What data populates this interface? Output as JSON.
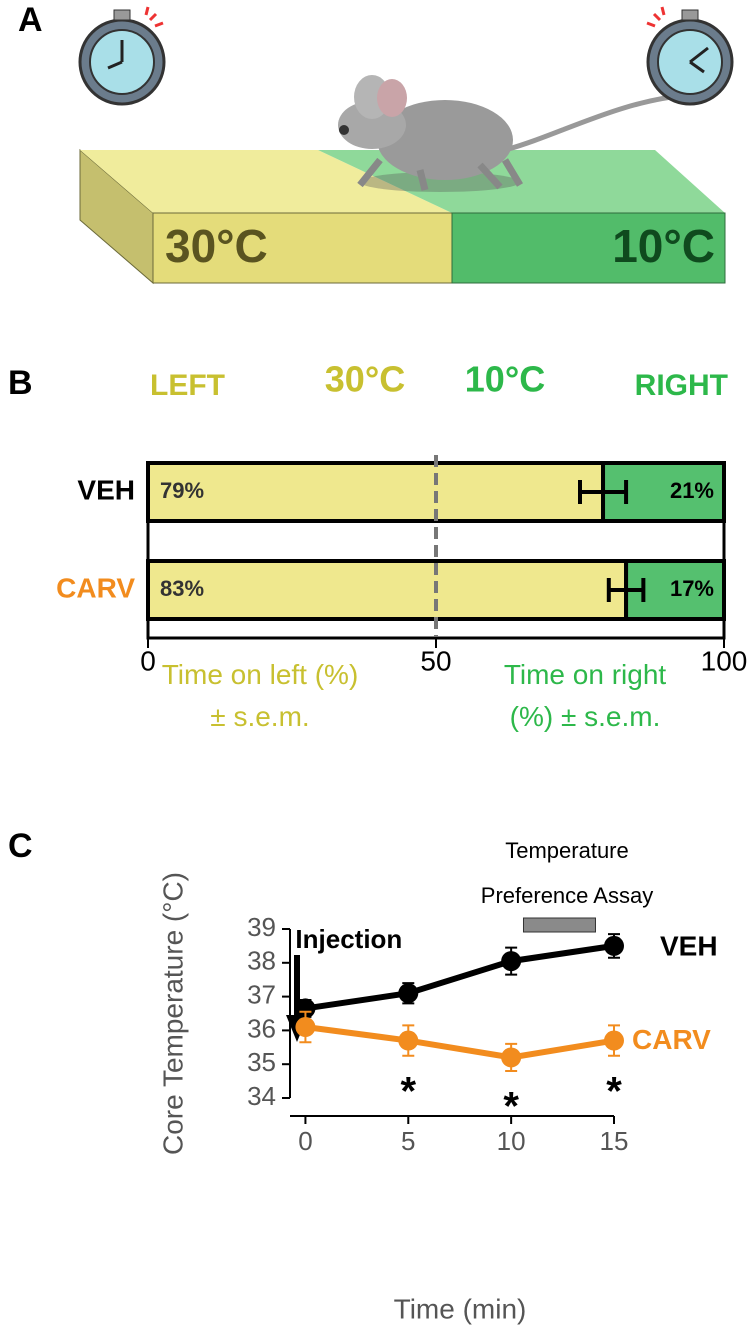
{
  "panel_a": {
    "label": "A",
    "left_temp": "30°C",
    "right_temp": "10°C"
  },
  "chart_data": [
    {
      "type": "bar",
      "label": "B",
      "header_left": "LEFT",
      "header_left_temp": "30°C",
      "header_right_temp": "10°C",
      "header_right": "RIGHT",
      "categories": [
        "VEH",
        "CARV"
      ],
      "category_colors": [
        "#000000",
        "#f28c1e"
      ],
      "series": [
        {
          "name": "Time on left (%) ± s.e.m.",
          "color": "#efe88e",
          "label_color": "#c8c030",
          "values": [
            79,
            83
          ],
          "value_labels": [
            "79%",
            "83%"
          ],
          "errors": [
            4,
            3
          ]
        },
        {
          "name": "Time on right (%) ± s.e.m.",
          "color": "#55c06f",
          "label_color": "#2db84a",
          "values": [
            21,
            17
          ],
          "value_labels": [
            "21%",
            "17%"
          ]
        }
      ],
      "xlim": [
        0,
        100
      ],
      "xticks": [
        0,
        50,
        100
      ],
      "reference_line": 50
    },
    {
      "type": "line",
      "label": "C",
      "x": [
        0,
        5,
        10,
        15
      ],
      "xlim": [
        -0.75,
        15
      ],
      "xticks": [
        0,
        5,
        10,
        15
      ],
      "ylim": [
        34,
        39
      ],
      "yticks": [
        34,
        35,
        36,
        37,
        38,
        39
      ],
      "x_label": "Time (min)",
      "y_label": "Core Temperature (°C)",
      "series": [
        {
          "name": "VEH",
          "color": "#000000",
          "values": [
            36.65,
            37.1,
            38.05,
            38.5
          ],
          "errors": [
            0.25,
            0.3,
            0.4,
            0.35
          ]
        },
        {
          "name": "CARV",
          "color": "#f28c1e",
          "values": [
            36.1,
            35.7,
            35.2,
            35.7
          ],
          "errors": [
            0.45,
            0.45,
            0.4,
            0.45
          ]
        }
      ],
      "injection": {
        "text": "Injection",
        "x": 0
      },
      "assay": {
        "lines": [
          "Temperature",
          "Preference Assay"
        ],
        "range": [
          10.6,
          14.1
        ]
      },
      "significance": [
        {
          "text": "*",
          "x": 5
        },
        {
          "text": "*",
          "x": 10
        },
        {
          "text": "*",
          "x": 15
        }
      ]
    }
  ]
}
